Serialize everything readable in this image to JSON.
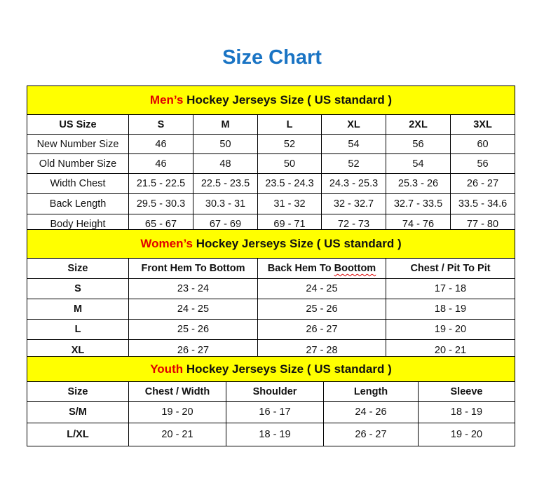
{
  "title": "Size Chart",
  "accent_color": "#e00000",
  "band_color": "#ffff00",
  "title_color": "#1a74c4",
  "men": {
    "band_accent": "Men’s",
    "band_rest": " Hockey Jerseys Size ( US standard )",
    "headers": [
      "US Size",
      "S",
      "M",
      "L",
      "XL",
      "2XL",
      "3XL"
    ],
    "rows": [
      [
        "New Number Size",
        "46",
        "50",
        "52",
        "54",
        "56",
        "60"
      ],
      [
        "Old Number Size",
        "46",
        "48",
        "50",
        "52",
        "54",
        "56"
      ],
      [
        "Width Chest",
        "21.5 - 22.5",
        "22.5 - 23.5",
        "23.5 - 24.3",
        "24.3 - 25.3",
        "25.3 - 26",
        "26 - 27"
      ],
      [
        "Back Length",
        "29.5 - 30.3",
        "30.3 - 31",
        "31 - 32",
        "32 - 32.7",
        "32.7 - 33.5",
        "33.5 - 34.6"
      ],
      [
        "Body Height",
        "65 - 67",
        "67 - 69",
        "69 - 71",
        "72 - 73",
        "74 - 76",
        "77 - 80"
      ]
    ]
  },
  "women": {
    "band_accent": "Women’s",
    "band_rest": " Hockey Jerseys Size ( US standard )",
    "headers": [
      "Size",
      "Front Hem To Bottom",
      "Back Hem To Boottom",
      "Chest / Pit To Pit"
    ],
    "rows": [
      [
        "S",
        "23 - 24",
        "24 - 25",
        "17 - 18"
      ],
      [
        "M",
        "24 - 25",
        "25 - 26",
        "18 - 19"
      ],
      [
        "L",
        "25 - 26",
        "26 - 27",
        "19 - 20"
      ],
      [
        "XL",
        "26 - 27",
        "27 - 28",
        "20 - 21"
      ]
    ]
  },
  "youth": {
    "band_accent": "Youth",
    "band_rest": " Hockey Jerseys Size ( US standard )",
    "headers": [
      "Size",
      "Chest / Width",
      "Shoulder",
      "Length",
      "Sleeve"
    ],
    "rows": [
      [
        "S/M",
        "19 - 20",
        "16 - 17",
        "24 - 26",
        "18 - 19"
      ],
      [
        "L/XL",
        "20 - 21",
        "18 - 19",
        "26 - 27",
        "19 - 20"
      ]
    ]
  }
}
